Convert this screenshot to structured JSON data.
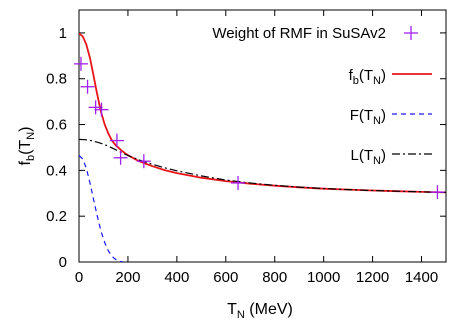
{
  "chart_data": {
    "type": "line",
    "xlabel_main": "T",
    "xlabel_sub": "N",
    "xlabel_unit": " (MeV)",
    "ylabel_main": "f",
    "ylabel_sub1": "b",
    "ylabel_mid": "(T",
    "ylabel_sub2": "N",
    "ylabel_close": ")",
    "xlim": [
      0,
      1500
    ],
    "ylim": [
      0,
      1.1
    ],
    "xticks": [
      0,
      200,
      400,
      600,
      800,
      1000,
      1200,
      1400
    ],
    "yticks": [
      0,
      0.2,
      0.4,
      0.6,
      0.8,
      1
    ],
    "ytick_labels": [
      "0",
      "0.2",
      "0.4",
      "0.6",
      "0.8",
      "1"
    ],
    "legend_position": "top-right",
    "grid": false,
    "series": [
      {
        "name": "Weight of RMF in SuSAv2",
        "kind": "points",
        "marker": "plus",
        "color": "#a020f0",
        "x": [
          8,
          35,
          68,
          92,
          155,
          170,
          265,
          650,
          1465
        ],
        "y": [
          0.865,
          0.765,
          0.675,
          0.665,
          0.53,
          0.455,
          0.44,
          0.345,
          0.305
        ]
      },
      {
        "name": "f",
        "name_sub": "b",
        "name_mid": "(T",
        "name_sub2": "N",
        "name_close": ")",
        "kind": "line",
        "dash": "solid",
        "color": "#e8141a",
        "x": [
          0,
          15,
          30,
          45,
          60,
          75,
          90,
          105,
          120,
          135,
          150,
          170,
          190,
          210,
          240,
          270,
          300,
          350,
          400,
          500,
          600,
          700,
          800,
          900,
          1000,
          1100,
          1200,
          1300,
          1400,
          1500
        ],
        "y": [
          0.998,
          0.985,
          0.95,
          0.89,
          0.81,
          0.73,
          0.655,
          0.6,
          0.56,
          0.53,
          0.51,
          0.49,
          0.473,
          0.46,
          0.443,
          0.43,
          0.418,
          0.401,
          0.388,
          0.368,
          0.353,
          0.342,
          0.333,
          0.326,
          0.32,
          0.316,
          0.312,
          0.309,
          0.306,
          0.304
        ]
      },
      {
        "name": "F",
        "name_mid": "(T",
        "name_sub2": "N",
        "name_close": ")",
        "kind": "line",
        "dash": "dashed",
        "color": "#1a1aff",
        "x": [
          0,
          15,
          30,
          45,
          60,
          75,
          90,
          105,
          120,
          135,
          150,
          165,
          180
        ],
        "y": [
          0.465,
          0.45,
          0.41,
          0.345,
          0.27,
          0.2,
          0.135,
          0.085,
          0.048,
          0.025,
          0.011,
          0.004,
          0
        ]
      },
      {
        "name": "L",
        "name_mid": "(T",
        "name_sub2": "N",
        "name_close": ")",
        "kind": "line",
        "dash": "dashdot",
        "color": "#000000",
        "x": [
          0,
          25,
          50,
          75,
          100,
          125,
          150,
          175,
          200,
          250,
          300,
          350,
          400,
          500,
          600,
          700,
          800,
          900,
          1000,
          1100,
          1200,
          1300,
          1400,
          1500
        ],
        "y": [
          0.535,
          0.534,
          0.53,
          0.523,
          0.514,
          0.503,
          0.49,
          0.477,
          0.465,
          0.444,
          0.427,
          0.411,
          0.398,
          0.376,
          0.358,
          0.345,
          0.335,
          0.327,
          0.321,
          0.316,
          0.312,
          0.309,
          0.306,
          0.304
        ]
      }
    ]
  }
}
